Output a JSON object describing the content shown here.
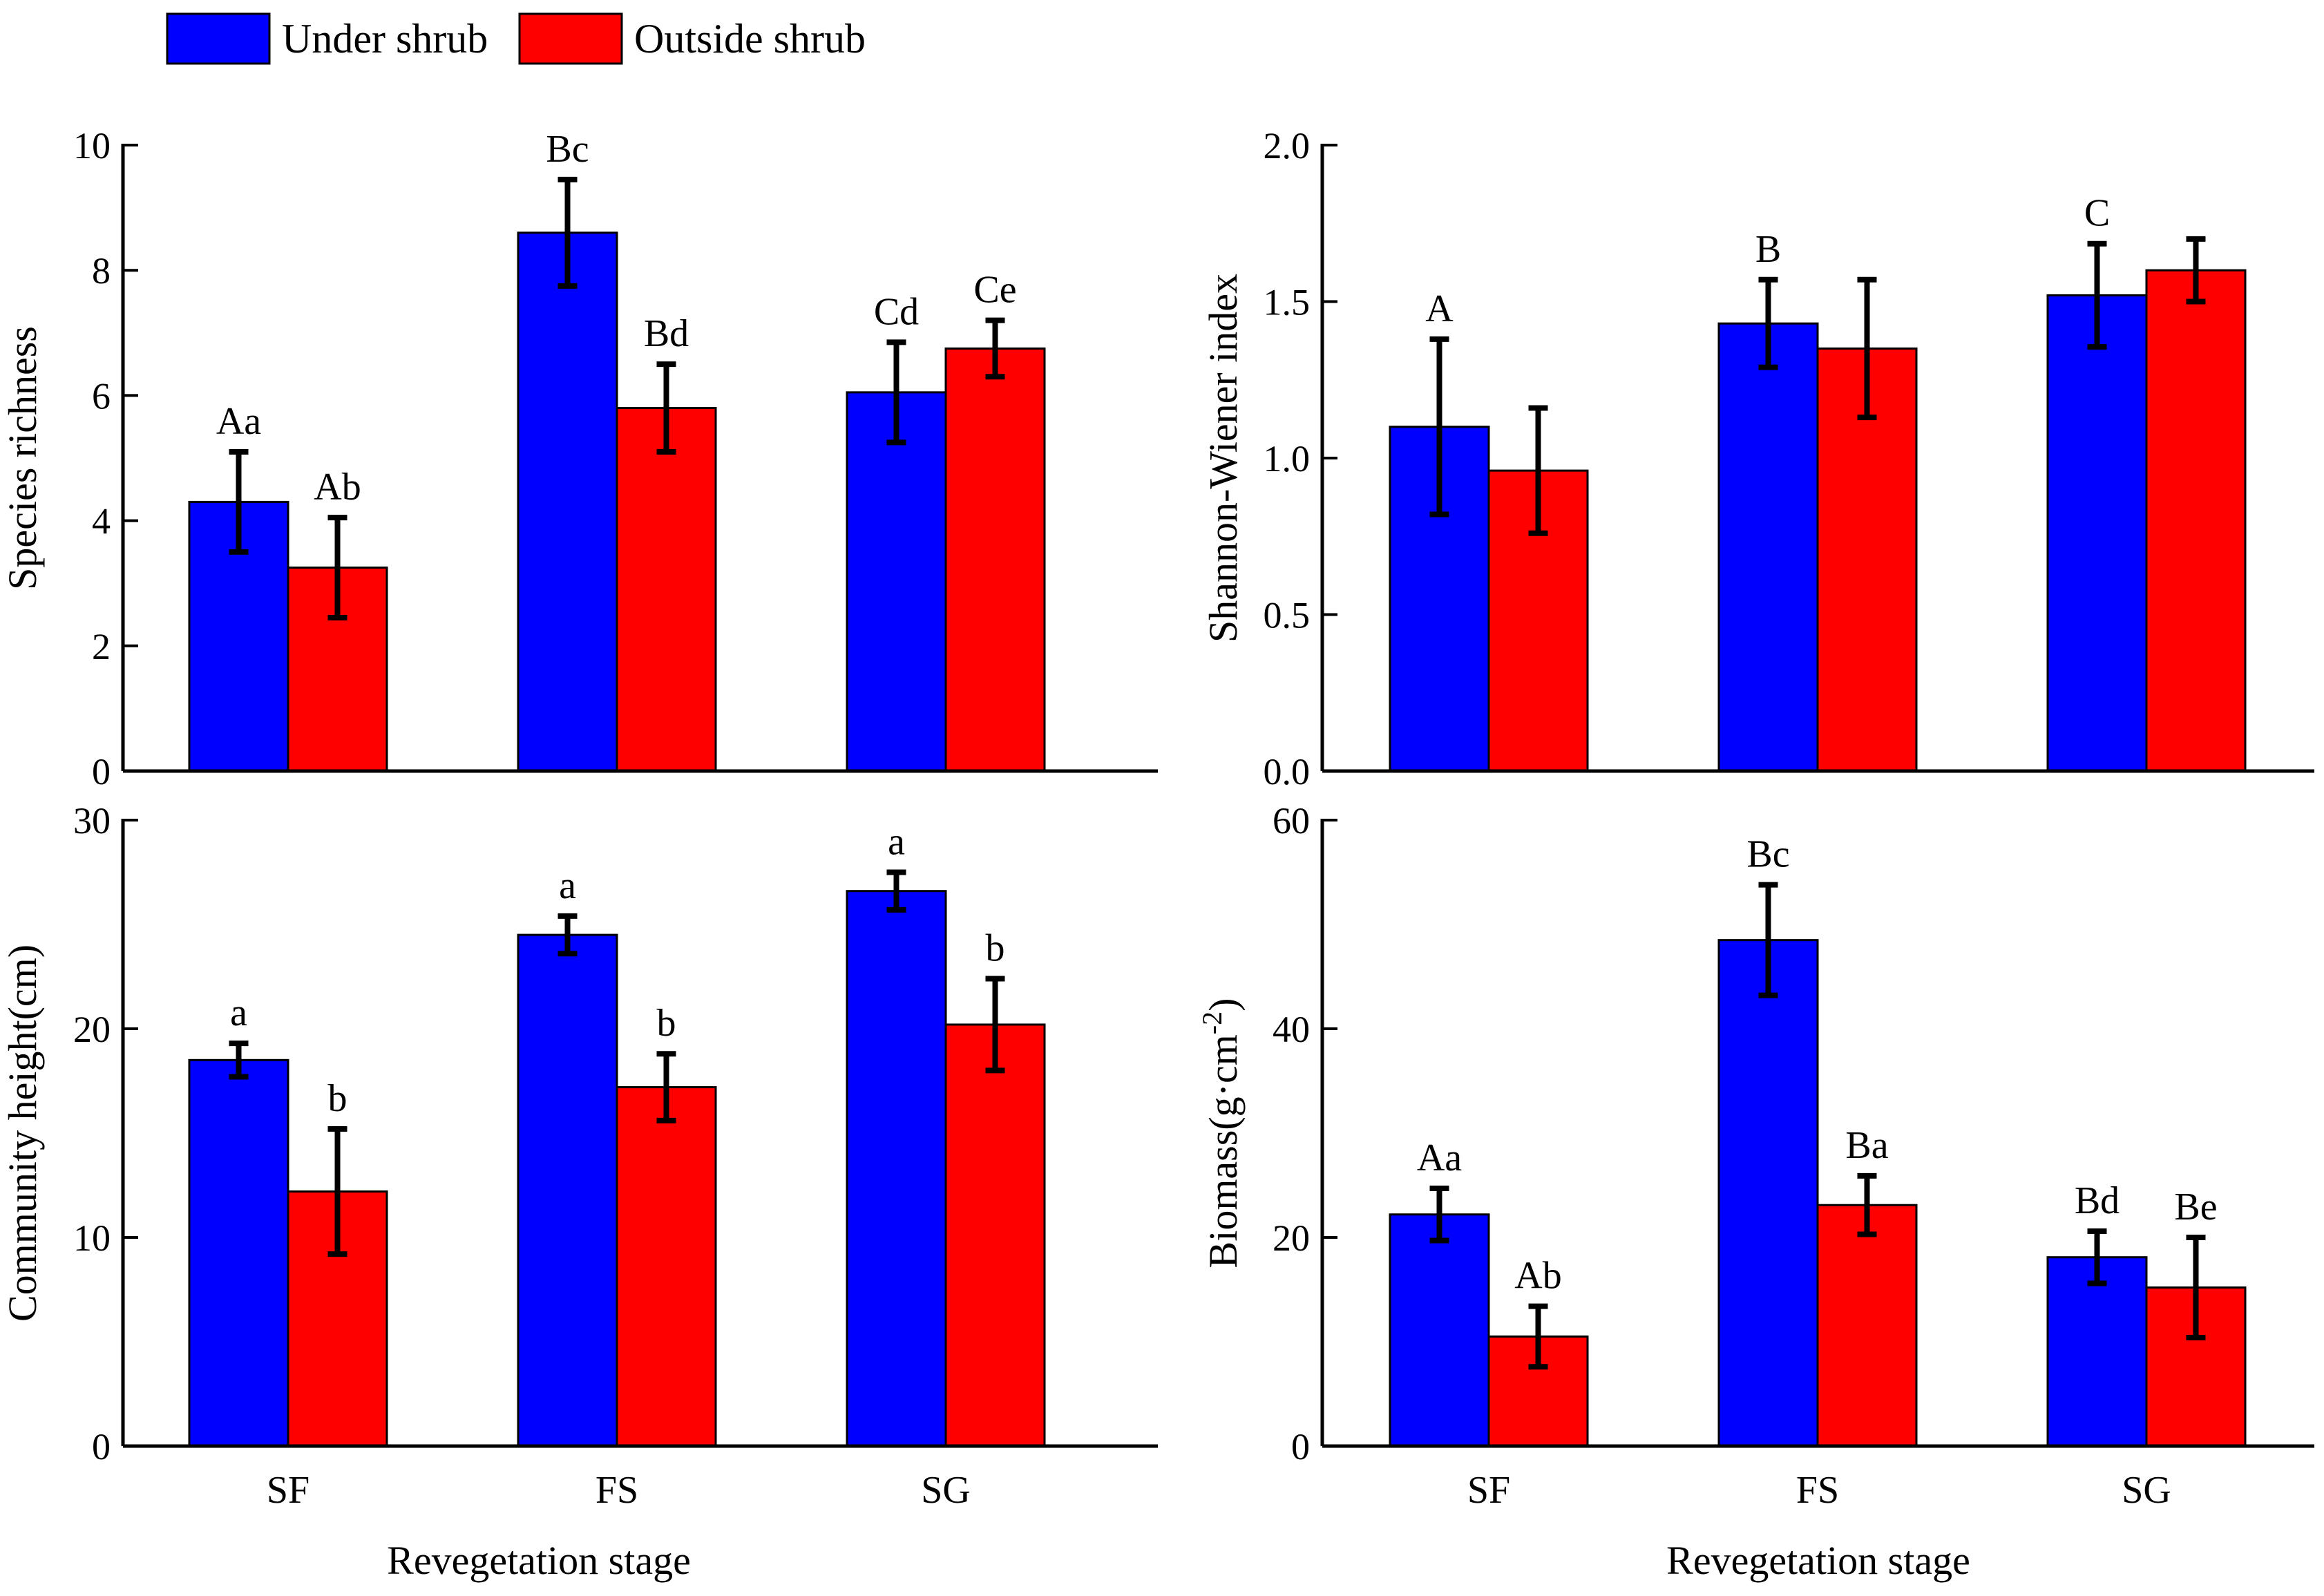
{
  "legend": [
    {
      "label": "Under shrub",
      "color": "#0000ff"
    },
    {
      "label": "Outside shrub",
      "color": "#ff0000"
    }
  ],
  "x_axis_title": "Revegetation stage",
  "chart_data": [
    {
      "id": "species-richness",
      "type": "bar",
      "categories": [
        "SF",
        "FS",
        "SG"
      ],
      "ylabel": "Species richness",
      "ylim": [
        0,
        10
      ],
      "yticks": [
        0,
        2,
        4,
        6,
        8,
        10
      ],
      "ytick_labels": [
        "0",
        "2",
        "4",
        "6",
        "8",
        "10"
      ],
      "show_category_labels": false,
      "series": [
        {
          "name": "Under shrub",
          "color": "#0000ff",
          "values": [
            4.3,
            8.6,
            6.05
          ],
          "errors": [
            0.8,
            0.85,
            0.8
          ],
          "labels": [
            "Aa",
            "Bc",
            "Cd"
          ]
        },
        {
          "name": "Outside shrub",
          "color": "#ff0000",
          "values": [
            3.25,
            5.8,
            6.75
          ],
          "errors": [
            0.8,
            0.7,
            0.45
          ],
          "labels": [
            "Ab",
            "Bd",
            "Ce"
          ]
        }
      ]
    },
    {
      "id": "shannon-wiener",
      "type": "bar",
      "categories": [
        "SF",
        "FS",
        "SG"
      ],
      "ylabel": "Shannon-Wiener index",
      "ylim": [
        0,
        2.0
      ],
      "yticks": [
        0,
        0.5,
        1.0,
        1.5,
        2.0
      ],
      "ytick_labels": [
        "0.0",
        "0.5",
        "1.0",
        "1.5",
        "2.0"
      ],
      "show_category_labels": false,
      "series": [
        {
          "name": "Under shrub",
          "color": "#0000ff",
          "values": [
            1.1,
            1.43,
            1.52
          ],
          "errors": [
            0.28,
            0.14,
            0.165
          ],
          "labels": [
            "A",
            "B",
            "C"
          ]
        },
        {
          "name": "Outside shrub",
          "color": "#ff0000",
          "values": [
            0.96,
            1.35,
            1.6
          ],
          "errors": [
            0.2,
            0.22,
            0.1
          ],
          "labels": [
            "",
            "",
            ""
          ]
        }
      ]
    },
    {
      "id": "community-height",
      "type": "bar",
      "categories": [
        "SF",
        "FS",
        "SG"
      ],
      "ylabel": "Community height(cm)",
      "ylim": [
        0,
        30
      ],
      "yticks": [
        0,
        10,
        20,
        30
      ],
      "ytick_labels": [
        "0",
        "10",
        "20",
        "30"
      ],
      "show_category_labels": true,
      "series": [
        {
          "name": "Under shrub",
          "color": "#0000ff",
          "values": [
            18.5,
            24.5,
            26.6
          ],
          "errors": [
            0.8,
            0.9,
            0.9
          ],
          "labels": [
            "a",
            "a",
            "a"
          ]
        },
        {
          "name": "Outside shrub",
          "color": "#ff0000",
          "values": [
            12.2,
            17.2,
            20.2
          ],
          "errors": [
            3.0,
            1.6,
            2.2
          ],
          "labels": [
            "b",
            "b",
            "b"
          ]
        }
      ]
    },
    {
      "id": "biomass",
      "type": "bar",
      "categories": [
        "SF",
        "FS",
        "SG"
      ],
      "ylabel": "Biomass(g·cm",
      "ylabel_sup": "-2",
      "ylabel_close": ")",
      "ylim": [
        0,
        60
      ],
      "yticks": [
        0,
        20,
        40,
        60
      ],
      "ytick_labels": [
        "0",
        "20",
        "40",
        "60"
      ],
      "show_category_labels": true,
      "series": [
        {
          "name": "Under shrub",
          "color": "#0000ff",
          "values": [
            22.2,
            48.5,
            18.1
          ],
          "errors": [
            2.5,
            5.3,
            2.5
          ],
          "labels": [
            "Aa",
            "Bc",
            "Bd"
          ]
        },
        {
          "name": "Outside shrub",
          "color": "#ff0000",
          "values": [
            10.5,
            23.1,
            15.2
          ],
          "errors": [
            2.9,
            2.8,
            4.8
          ],
          "labels": [
            "Ab",
            "Ba",
            "Be"
          ]
        }
      ]
    }
  ]
}
